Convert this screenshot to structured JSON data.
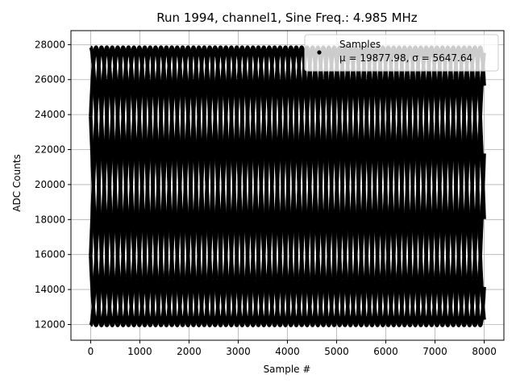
{
  "chart_data": {
    "type": "scatter",
    "title": "Run 1994, channel1, Sine Freq.: 4.985 MHz",
    "xlabel": "Sample #",
    "ylabel": "ADC Counts",
    "xlim": [
      -400,
      8400
    ],
    "ylim": [
      11100,
      28800
    ],
    "xticks": [
      0,
      1000,
      2000,
      3000,
      4000,
      5000,
      6000,
      7000,
      8000
    ],
    "yticks": [
      12000,
      14000,
      16000,
      18000,
      20000,
      22000,
      24000,
      26000,
      28000
    ],
    "grid": true,
    "legend_position": "top-right",
    "series": [
      {
        "name": "Samples",
        "stats_label": "μ = 19877.98, σ = 5647.64",
        "mean": 19877.98,
        "sigma": 5647.64,
        "color": "#000000",
        "n_samples": 8000,
        "signal": {
          "offset": 19900,
          "amplitude": 7950,
          "envelope_period_samples": 660,
          "num_phase_tracks": 6,
          "x_start": 0,
          "x_end": 8000
        }
      }
    ]
  }
}
